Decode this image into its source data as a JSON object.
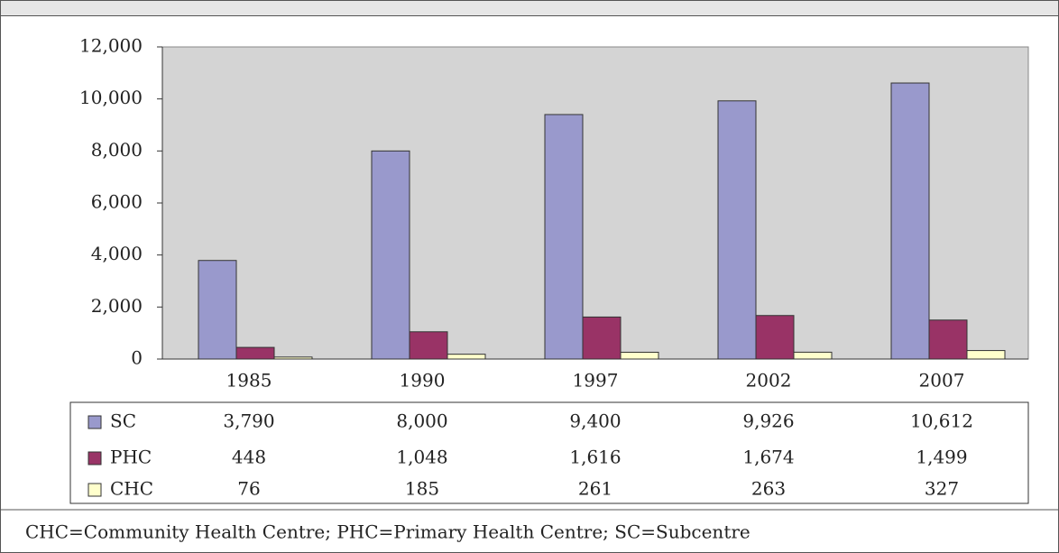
{
  "chart_data": {
    "type": "bar",
    "categories": [
      "1985",
      "1990",
      "1997",
      "2002",
      "2007"
    ],
    "series": [
      {
        "name": "SC",
        "color": "#9999cc",
        "values": [
          3790,
          8000,
          9400,
          9926,
          10612
        ],
        "value_labels": [
          "3,790",
          "8,000",
          "9,400",
          "9,926",
          "10,612"
        ]
      },
      {
        "name": "PHC",
        "color": "#993366",
        "values": [
          448,
          1048,
          1616,
          1674,
          1499
        ],
        "value_labels": [
          "448",
          "1,048",
          "1,616",
          "1,674",
          "1,499"
        ]
      },
      {
        "name": "CHC",
        "color": "#ffffcc",
        "values": [
          76,
          185,
          261,
          263,
          327
        ],
        "value_labels": [
          "76",
          "185",
          "261",
          "263",
          "327"
        ]
      }
    ],
    "ylim": [
      0,
      12000
    ],
    "yticks": [
      0,
      {
        "value": 2000,
        "label": "2,000"
      },
      {
        "value": 4000,
        "label": "4,000"
      },
      {
        "value": 6000,
        "label": "6,000"
      },
      {
        "value": 8000,
        "label": "8,000"
      },
      {
        "value": 10000,
        "label": "10,000"
      },
      {
        "value": 12000,
        "label": "12,000"
      }
    ],
    "footnote": "CHC=Community Health Centre; PHC=Primary Health Centre; SC=Subcentre"
  }
}
